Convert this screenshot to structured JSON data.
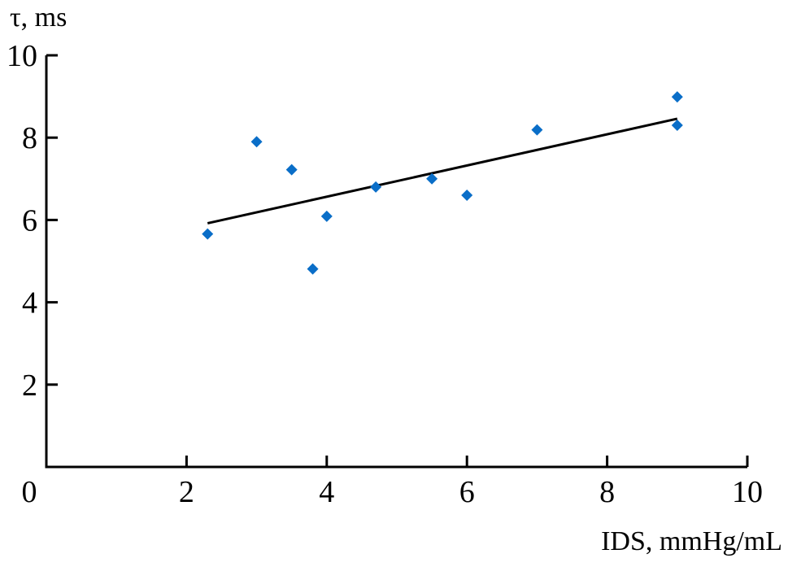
{
  "chart_data": {
    "type": "scatter",
    "title": "",
    "xlabel": "IDS, mmHg/mL",
    "ylabel": "τ, ms",
    "xlim": [
      0,
      10
    ],
    "ylim": [
      0,
      10
    ],
    "x_ticks": [
      "0",
      "2",
      "4",
      "6",
      "8",
      "10"
    ],
    "y_ticks": [
      "2",
      "4",
      "6",
      "8",
      "10"
    ],
    "grid": false,
    "marker": "diamond",
    "marker_color": "#0a6ec8",
    "line_color": "#000000",
    "points": [
      {
        "x": 2.3,
        "y": 5.66
      },
      {
        "x": 3.0,
        "y": 7.9
      },
      {
        "x": 3.5,
        "y": 7.22
      },
      {
        "x": 3.8,
        "y": 4.81
      },
      {
        "x": 4.0,
        "y": 6.09
      },
      {
        "x": 4.7,
        "y": 6.8
      },
      {
        "x": 5.5,
        "y": 7.0
      },
      {
        "x": 6.0,
        "y": 6.6
      },
      {
        "x": 7.0,
        "y": 8.19
      },
      {
        "x": 9.0,
        "y": 8.99
      },
      {
        "x": 9.0,
        "y": 8.3
      }
    ],
    "trendline": {
      "x": [
        2.3,
        9.0
      ],
      "y": [
        5.92,
        8.46
      ]
    }
  }
}
